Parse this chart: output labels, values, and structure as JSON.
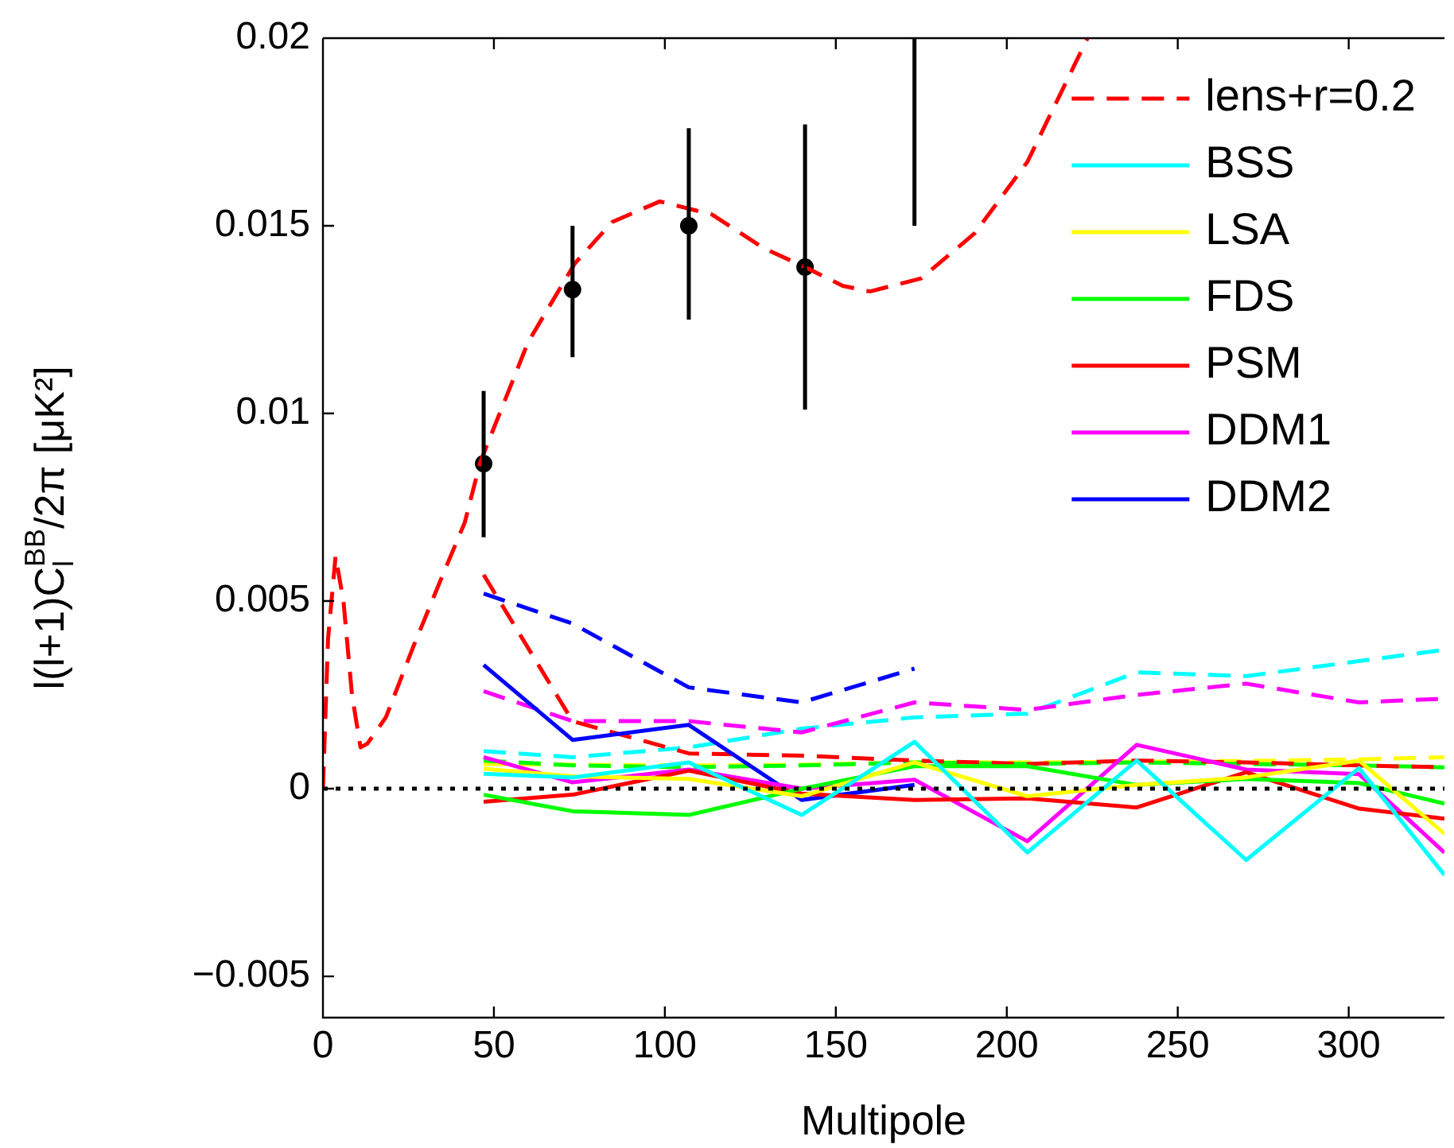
{
  "chart_data": {
    "type": "line",
    "xlabel": "Multipole",
    "ylabel": "l(l+1)C$_{l}$$^{BB}$/2π [μK²]",
    "x": [
      47,
      73,
      107,
      140,
      173,
      206,
      238,
      270,
      303,
      328
    ],
    "xlim": [
      0,
      328
    ],
    "xticks": [
      0,
      50,
      100,
      150,
      200,
      250,
      300
    ],
    "ylim": [
      -0.0061,
      0.02
    ],
    "yticks": [
      {
        "value": -0.005,
        "label": "−0.005"
      },
      0,
      0.005,
      0.01,
      0.015,
      0.02
    ],
    "legend": "top right",
    "ref_lines": [
      {
        "axis": "y",
        "value": 0,
        "color": "#000000",
        "line_style": "dotted"
      }
    ],
    "series": [
      {
        "name": "lens+r=0.2",
        "color": "#ff0000",
        "line_style": "dashed",
        "x": [
          0,
          1.5,
          3.7,
          6,
          8.5,
          11,
          13,
          18.4,
          26.5,
          34.6,
          41.5,
          46,
          60,
          73.7,
          84.6,
          98.5,
          113.8,
          129,
          141,
          152,
          160,
          175,
          190.6,
          206,
          223.6
        ],
        "values": [
          0,
          0.004,
          0.0062,
          0.005,
          0.0025,
          0.0011,
          0.0012,
          0.0019,
          0.0038,
          0.0056,
          0.0071,
          0.0087,
          0.0119,
          0.014,
          0.0151,
          0.01565,
          0.0153,
          0.0144,
          0.0139,
          0.0134,
          0.01325,
          0.0136,
          0.0148,
          0.0167,
          0.02
        ]
      },
      {
        "name": "BSS",
        "color": "#00ffff",
        "line_style": "solid",
        "values": [
          0.0004,
          0.0003,
          0.0007,
          -0.0007,
          0.00125,
          -0.0017,
          0.00075,
          -0.0019,
          0.00055,
          -0.0023
        ]
      },
      {
        "name": "LSA",
        "color": "#ffff00",
        "line_style": "solid",
        "values": [
          0.00053,
          0.00033,
          0.00026,
          -0.0002,
          0.0007,
          -0.0002,
          0.0001,
          0.0003,
          0.00075,
          -0.0012
        ]
      },
      {
        "name": "FDS",
        "color": "#00ff00",
        "line_style": "solid",
        "values": [
          -0.00016,
          -0.0006,
          -0.0007,
          0,
          0.0006,
          0.0006,
          0.0001,
          0.00026,
          0.00015,
          -0.0004
        ]
      },
      {
        "name": "PSM",
        "color": "#ff0000",
        "line_style": "solid",
        "values": [
          -0.00035,
          -0.00016,
          0.00048,
          -0.00013,
          -0.0003,
          -0.00026,
          -0.0005,
          0.00044,
          -0.00053,
          -0.0008
        ]
      },
      {
        "name": "DDM1",
        "color": "#ff00ff",
        "line_style": "solid",
        "values": [
          0.00084,
          0.00017,
          0.00051,
          0,
          0.00024,
          -0.0014,
          0.00117,
          0.00051,
          0.00039,
          -0.0017
        ]
      },
      {
        "name": "DDM2",
        "color": "#0000ff",
        "line_style": "solid",
        "values": [
          0.0033,
          0.0013,
          0.0017,
          -0.0003,
          0.0001,
          null,
          null,
          null,
          null,
          null
        ]
      },
      {
        "color": "#0000ff",
        "line_style": "dashed",
        "values": [
          0.0052,
          0.0044,
          0.0027,
          0.0023,
          0.0032,
          null,
          null,
          null,
          null,
          null
        ]
      },
      {
        "color": "#ff0000",
        "line_style": "dashed",
        "values": [
          0.0057,
          0.0018,
          0.00094,
          0.00088,
          0.00075,
          0.00066,
          0.00075,
          0.0007,
          0.00062,
          0.00057
        ]
      },
      {
        "color": "#ff00ff",
        "line_style": "dashed",
        "values": [
          0.0026,
          0.0018,
          0.0018,
          0.0015,
          0.0023,
          0.0021,
          0.0025,
          0.0028,
          0.0023,
          0.0024
        ]
      },
      {
        "color": "#00ffff",
        "line_style": "dashed",
        "values": [
          0.001,
          0.00084,
          0.0011,
          0.0016,
          0.0019,
          0.002,
          0.0031,
          0.003,
          0.0034,
          0.0037
        ]
      },
      {
        "color": "#00ff00",
        "line_style": "dashed",
        "values": [
          0.00075,
          0.00062,
          0.00057,
          0.00062,
          0.0007,
          0.00066,
          0.0007,
          0.00066,
          0.00062,
          0.00057
        ]
      },
      {
        "color": "#ffff00",
        "line_style": "dashed",
        "values": [
          0.00066,
          0.00064,
          0.00062,
          0.00064,
          0.0007,
          0.0007,
          0.00072,
          0.00074,
          0.00078,
          0.00084
        ]
      },
      {
        "type": "scatter",
        "color": "#000000",
        "marker": "circle",
        "x": [
          47,
          73,
          107,
          141
        ],
        "values": [
          0.00866,
          0.0133,
          0.015,
          0.0139
        ],
        "errors": [
          [
            0.0067,
            0.0106
          ],
          [
            0.0115,
            0.015
          ],
          [
            0.0125,
            0.0176
          ],
          [
            0.0101,
            0.0177
          ]
        ]
      },
      {
        "type": "line",
        "color": "#000000",
        "line_style": "solid",
        "x": [
          173,
          173
        ],
        "values": [
          0.015,
          0.02
        ]
      }
    ]
  }
}
